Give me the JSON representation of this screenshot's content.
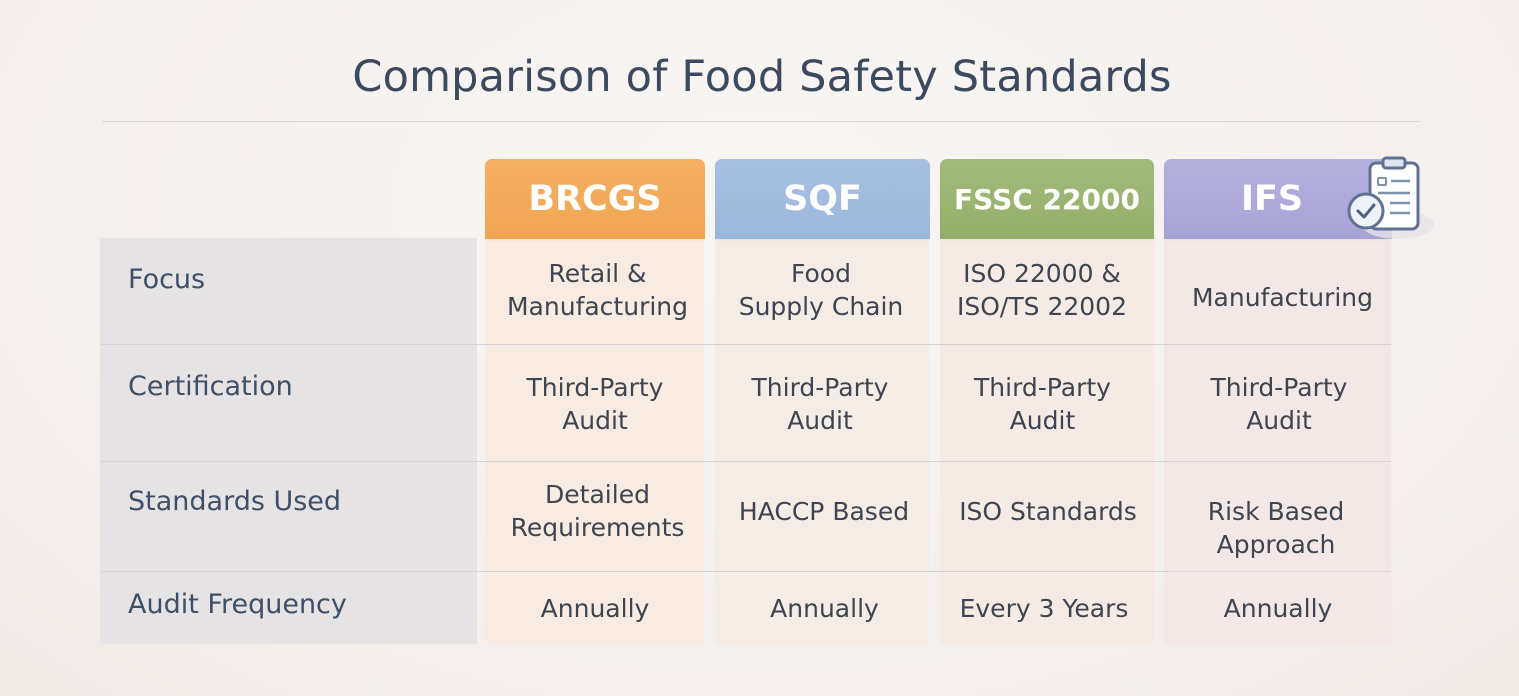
{
  "title": "Comparison of Food Safety Standards",
  "columns": [
    {
      "key": "brcgs",
      "label": "BRCGS",
      "color": "#f0a552"
    },
    {
      "key": "sqf",
      "label": "SQF",
      "color": "#9cb6dc"
    },
    {
      "key": "fssc",
      "label": "FSSC 22000",
      "color": "#93ae6a"
    },
    {
      "key": "ifs",
      "label": "IFS",
      "color": "#a8a3d6"
    }
  ],
  "rows": [
    {
      "label": "Focus",
      "cells": [
        "Retail &\nManufacturing",
        "Food\nSupply Chain",
        "ISO 22000 &\nISO/TS 22002",
        "Manufacturing"
      ]
    },
    {
      "label": "Certification",
      "cells": [
        "Third-Party\nAudit",
        "Third-Party\nAudit",
        "Third-Party\nAudit",
        "Third-Party\nAudit"
      ]
    },
    {
      "label": "Standards Used",
      "cells": [
        "Detailed\nRequirements",
        "HACCP Based",
        "ISO Standards",
        "Risk Based\nApproach"
      ]
    },
    {
      "label": "Audit Frequency",
      "cells": [
        "Annually",
        "Annually",
        "Every 3 Years",
        "Annually"
      ]
    }
  ],
  "icons": {
    "header_badge": "clipboard-check-icon"
  }
}
